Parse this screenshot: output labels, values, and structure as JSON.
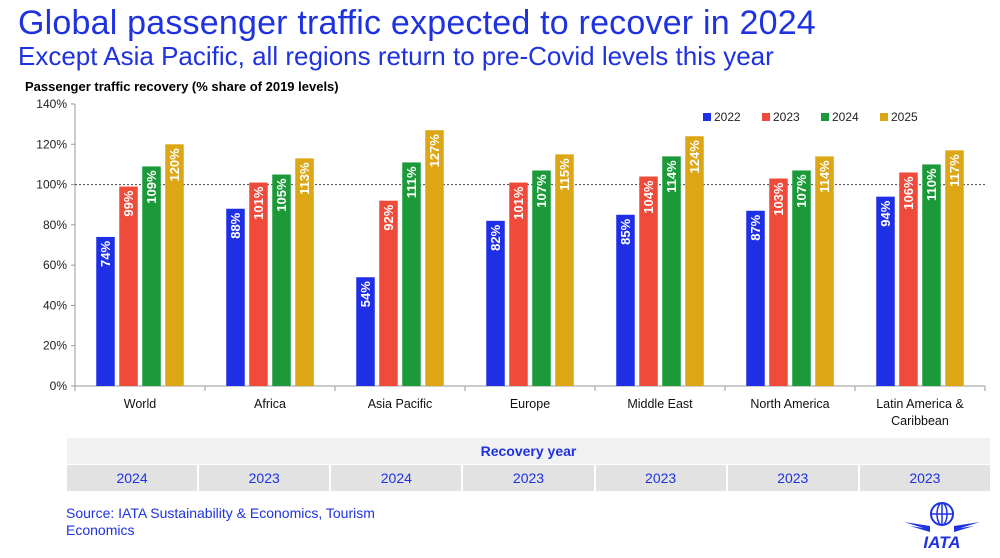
{
  "header": {
    "title": "Global passenger traffic expected to recover in 2024",
    "subtitle": "Except Asia Pacific, all regions return to pre-Covid levels this year"
  },
  "chart_data": {
    "type": "bar",
    "title": "Passenger traffic recovery (% share of 2019 levels)",
    "xlabel": "",
    "ylabel": "",
    "ylim": [
      0,
      140
    ],
    "yticks": [
      "0%",
      "20%",
      "40%",
      "60%",
      "80%",
      "100%",
      "120%",
      "140%"
    ],
    "reference_line": 100,
    "grid": false,
    "legend_position": "top-right",
    "categories": [
      "World",
      "Africa",
      "Asia Pacific",
      "Europe",
      "Middle East",
      "North America",
      "Latin America & Caribbean"
    ],
    "series": [
      {
        "name": "2022",
        "color": "#1f2fe6",
        "values": [
          74,
          88,
          54,
          82,
          85,
          87,
          94
        ],
        "labels": [
          "74%",
          "88%",
          "54%",
          "82%",
          "85%",
          "87%",
          "94%"
        ]
      },
      {
        "name": "2023",
        "color": "#f04a3a",
        "values": [
          99,
          101,
          92,
          101,
          104,
          103,
          106
        ],
        "labels": [
          "99%",
          "101%",
          "92%",
          "101%",
          "104%",
          "103%",
          "106%"
        ]
      },
      {
        "name": "2024",
        "color": "#1c9a3a",
        "values": [
          109,
          105,
          111,
          107,
          114,
          107,
          110
        ],
        "labels": [
          "109%",
          "105%",
          "111%",
          "107%",
          "114%",
          "107%",
          "110%"
        ]
      },
      {
        "name": "2025",
        "color": "#dca614",
        "values": [
          120,
          113,
          127,
          115,
          124,
          114,
          117
        ],
        "labels": [
          "120%",
          "113%",
          "127%",
          "115%",
          "124%",
          "114%",
          "117%"
        ]
      }
    ]
  },
  "recovery": {
    "header": "Recovery year",
    "years": [
      "2024",
      "2023",
      "2024",
      "2023",
      "2023",
      "2023",
      "2023"
    ]
  },
  "footer": {
    "source": "Source: IATA Sustainability & Economics, Tourism Economics",
    "logo_text": "IATA"
  },
  "colors": {
    "brand_blue": "#1e32e0"
  }
}
